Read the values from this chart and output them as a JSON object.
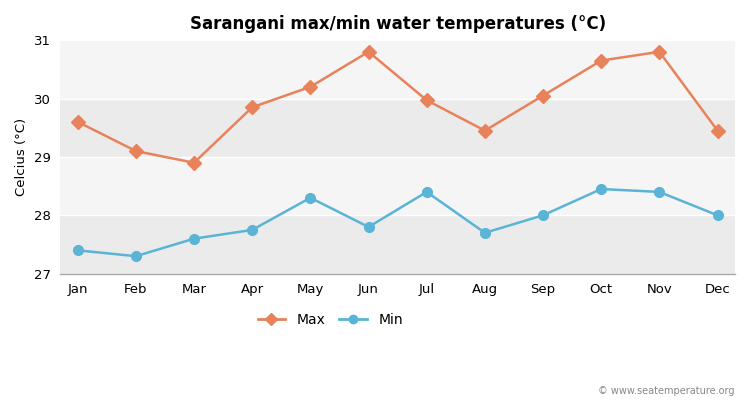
{
  "title": "Sarangani max/min water temperatures (°C)",
  "ylabel": "Celcius (°C)",
  "months": [
    "Jan",
    "Feb",
    "Mar",
    "Apr",
    "May",
    "Jun",
    "Jul",
    "Aug",
    "Sep",
    "Oct",
    "Nov",
    "Dec"
  ],
  "max_temps": [
    29.6,
    29.1,
    28.9,
    29.85,
    30.2,
    30.8,
    29.97,
    29.45,
    30.05,
    30.65,
    30.8,
    29.45
  ],
  "min_temps": [
    27.4,
    27.3,
    27.6,
    27.75,
    28.3,
    27.8,
    28.4,
    27.7,
    28.0,
    28.45,
    28.4,
    28.0
  ],
  "max_color": "#e8825a",
  "min_color": "#5ab4d6",
  "bg_color": "#ffffff",
  "band_colors": [
    "#ebebeb",
    "#f5f5f5"
  ],
  "ylim": [
    27,
    31
  ],
  "yticks": [
    27,
    28,
    29,
    30,
    31
  ],
  "watermark": "© www.seatemperature.org",
  "legend_max": "Max",
  "legend_min": "Min"
}
